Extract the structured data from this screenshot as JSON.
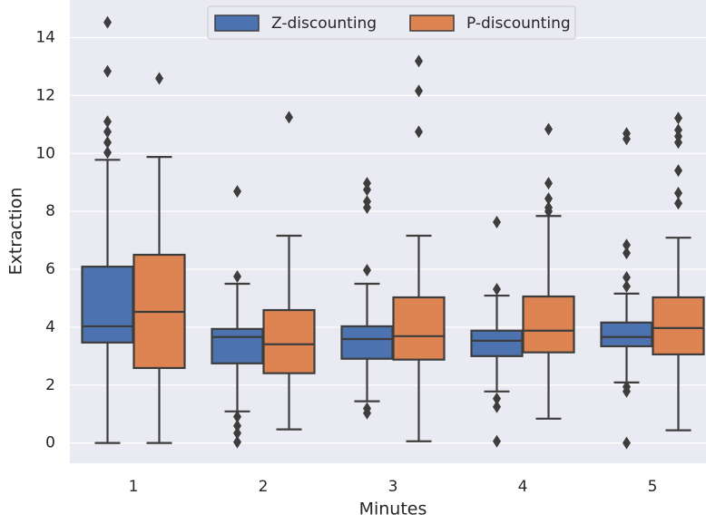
{
  "chart_data": {
    "type": "box",
    "x_label": "Minutes",
    "y_label": "Extraction",
    "categories": [
      "1",
      "2",
      "3",
      "4",
      "5"
    ],
    "ylim": [
      -0.7,
      15.3
    ],
    "yticks": [
      0,
      2,
      4,
      6,
      8,
      10,
      12,
      14
    ],
    "grid": true,
    "legend": "upper center",
    "series": [
      {
        "name": "Z-discounting",
        "color": "#4c72b0",
        "boxes": [
          {
            "whislo": 0,
            "q1": 3.47,
            "med": 4.03,
            "q3": 6.09,
            "whishi": 9.78,
            "fliers": [
              14.53,
              12.84,
              11.1,
              10.75,
              10.38,
              10.03
            ]
          },
          {
            "whislo": 1.09,
            "q1": 2.75,
            "med": 3.66,
            "q3": 3.94,
            "whishi": 5.5,
            "fliers": [
              8.69,
              5.75,
              0.91,
              0.59,
              0.34,
              0.03
            ]
          },
          {
            "whislo": 1.44,
            "q1": 2.91,
            "med": 3.59,
            "q3": 4.03,
            "whishi": 5.5,
            "fliers": [
              8.97,
              8.75,
              8.34,
              8.13,
              5.97,
              1.19,
              1.03
            ]
          },
          {
            "whislo": 1.78,
            "q1": 3.0,
            "med": 3.53,
            "q3": 3.88,
            "whishi": 5.09,
            "fliers": [
              7.63,
              5.31,
              1.53,
              1.25,
              0.06
            ]
          },
          {
            "whislo": 2.09,
            "q1": 3.34,
            "med": 3.66,
            "q3": 4.16,
            "whishi": 5.16,
            "fliers": [
              10.69,
              10.5,
              6.84,
              6.56,
              5.72,
              5.41,
              1.94,
              1.78,
              0
            ]
          }
        ]
      },
      {
        "name": "P-discounting",
        "color": "#dd8452",
        "boxes": [
          {
            "whislo": 0,
            "q1": 2.59,
            "med": 4.53,
            "q3": 6.5,
            "whishi": 9.88,
            "fliers": [
              12.59
            ]
          },
          {
            "whislo": 0.47,
            "q1": 2.41,
            "med": 3.41,
            "q3": 4.59,
            "whishi": 7.16,
            "fliers": [
              11.25
            ]
          },
          {
            "whislo": 0.06,
            "q1": 2.88,
            "med": 3.69,
            "q3": 5.03,
            "whishi": 7.16,
            "fliers": [
              13.19,
              12.16,
              10.75
            ]
          },
          {
            "whislo": 0.84,
            "q1": 3.13,
            "med": 3.88,
            "q3": 5.06,
            "whishi": 7.84,
            "fliers": [
              10.84,
              8.97,
              8.44,
              8.13,
              8.0
            ]
          },
          {
            "whislo": 0.44,
            "q1": 3.06,
            "med": 3.97,
            "q3": 5.03,
            "whishi": 7.09,
            "fliers": [
              11.22,
              10.81,
              10.59,
              10.38,
              9.41,
              8.63,
              8.28
            ]
          }
        ]
      }
    ]
  }
}
